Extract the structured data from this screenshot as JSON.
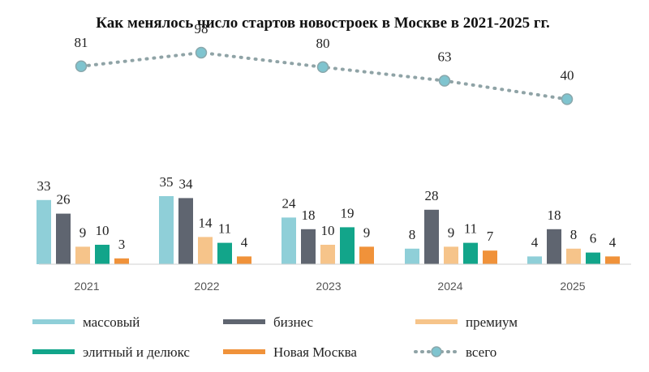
{
  "chart_data": {
    "type": "bar",
    "title": "Как менялось число стартов новостроек в Москве в 2021-2025 гг.",
    "categories": [
      "2021",
      "2022",
      "2023",
      "2024",
      "2025"
    ],
    "series": [
      {
        "name": "массовый",
        "color": "#8fcfd8",
        "values": [
          33,
          35,
          24,
          8,
          4
        ]
      },
      {
        "name": "бизнес",
        "color": "#5f6570",
        "values": [
          26,
          34,
          18,
          28,
          18
        ]
      },
      {
        "name": "премиум",
        "color": "#f6c48a",
        "values": [
          9,
          14,
          10,
          9,
          8
        ]
      },
      {
        "name": "элитный и делюкс",
        "color": "#12a58a",
        "values": [
          10,
          11,
          19,
          11,
          6
        ]
      },
      {
        "name": "Новая Москва",
        "color": "#f0923a",
        "values": [
          3,
          4,
          9,
          7,
          4
        ]
      }
    ],
    "line_series": {
      "name": "всего",
      "color": "#8fa3a6",
      "marker_color": "#7fc4cf",
      "values": [
        81,
        98,
        80,
        63,
        40
      ]
    },
    "xlabel": "",
    "ylabel": "",
    "bar_ylim": [
      0,
      40
    ],
    "line_ylim": [
      0,
      100
    ],
    "legend_position": "bottom",
    "grid": false
  }
}
